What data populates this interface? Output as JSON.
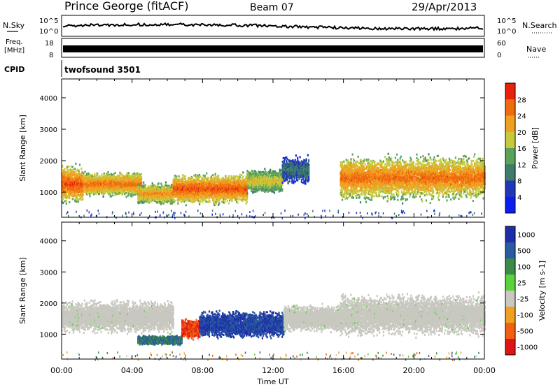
{
  "header": {
    "station": "Prince George (fitACF)",
    "beam": "Beam 07",
    "date": "29/Apr/2013"
  },
  "nsky_panel": {
    "left_label": "N.Sky",
    "right_label": "N.Search",
    "left_ticks": [
      "10^5",
      "10^0"
    ],
    "right_ticks": [
      "10^5",
      "10^0"
    ]
  },
  "freq_panel": {
    "left_label_1": "Freq.",
    "left_label_2": "[MHz]",
    "left_ticks": [
      "18",
      "8"
    ],
    "right_label": "Nave",
    "right_ticks": [
      "60",
      "0"
    ]
  },
  "cpid_panel": {
    "label": "CPID",
    "program": "twofsound 3501"
  },
  "chart_data": [
    {
      "type": "heatmap",
      "quantity": "power",
      "ylabel": "Slant Range [km]",
      "xlabel": "",
      "yticks": [
        1000,
        2000,
        3000,
        4000
      ],
      "ylim": [
        200,
        4600
      ],
      "xlim": [
        0,
        24
      ],
      "xticks": [
        "00:00",
        "04:00",
        "08:00",
        "12:00",
        "16:00",
        "20:00",
        "00:00"
      ],
      "colorbar": {
        "label": "Power [dB]",
        "ticks": [
          "4",
          "8",
          "12",
          "16",
          "20",
          "24",
          "28"
        ],
        "colors": [
          "#0a1ef0",
          "#2038b8",
          "#3f7a6a",
          "#5aa25a",
          "#c8c83c",
          "#f0a020",
          "#f06a10",
          "#e8200c"
        ]
      },
      "echo_regions": [
        {
          "t0": 0.0,
          "t1": 1.2,
          "r_center": 1250,
          "r_width": 1300,
          "peak_db": 28
        },
        {
          "t0": 1.2,
          "t1": 4.5,
          "r_center": 1250,
          "r_width": 800,
          "peak_db": 26
        },
        {
          "t0": 4.3,
          "t1": 6.3,
          "r_center": 950,
          "r_width": 700,
          "peak_db": 24
        },
        {
          "t0": 6.3,
          "t1": 10.5,
          "r_center": 1100,
          "r_width": 1000,
          "peak_db": 28
        },
        {
          "t0": 10.5,
          "t1": 12.5,
          "r_center": 1350,
          "r_width": 800,
          "peak_db": 20
        },
        {
          "t0": 12.5,
          "t1": 14.0,
          "r_center": 1700,
          "r_width": 900,
          "peak_db": 10
        },
        {
          "t0": 15.8,
          "t1": 24.0,
          "r_center": 1450,
          "r_width": 1500,
          "peak_db": 26
        }
      ]
    },
    {
      "type": "heatmap",
      "quantity": "velocity",
      "ylabel": "Slant Range [km]",
      "xlabel": "Time UT",
      "yticks": [
        1000,
        2000,
        3000,
        4000
      ],
      "ylim": [
        200,
        4600
      ],
      "xlim": [
        0,
        24
      ],
      "xticks": [
        "00:00",
        "04:00",
        "08:00",
        "12:00",
        "16:00",
        "20:00",
        "00:00"
      ],
      "colorbar": {
        "label": "Velocity [m s-1]",
        "ticks": [
          "1000",
          "500",
          "100",
          "25",
          "-25",
          "-100",
          "-500",
          "-1000"
        ],
        "colors": [
          "#1e2ea8",
          "#2a5aa0",
          "#3c8a4a",
          "#5ad23c",
          "#c8c8c0",
          "#f0a020",
          "#f06010",
          "#e01414"
        ]
      },
      "echo_regions": [
        {
          "t0": 0.0,
          "t1": 6.3,
          "r_center": 1550,
          "r_width": 1100,
          "velocity": 0
        },
        {
          "t0": 4.3,
          "t1": 6.8,
          "r_center": 800,
          "r_width": 300,
          "velocity": 100
        },
        {
          "t0": 6.8,
          "t1": 7.8,
          "r_center": 1150,
          "r_width": 700,
          "velocity": -500
        },
        {
          "t0": 7.8,
          "t1": 12.6,
          "r_center": 1300,
          "r_width": 900,
          "velocity": 500
        },
        {
          "t0": 12.6,
          "t1": 15.8,
          "r_center": 1500,
          "r_width": 900,
          "velocity": 0
        },
        {
          "t0": 15.8,
          "t1": 24.0,
          "r_center": 1600,
          "r_width": 1400,
          "velocity": 0
        }
      ]
    }
  ]
}
